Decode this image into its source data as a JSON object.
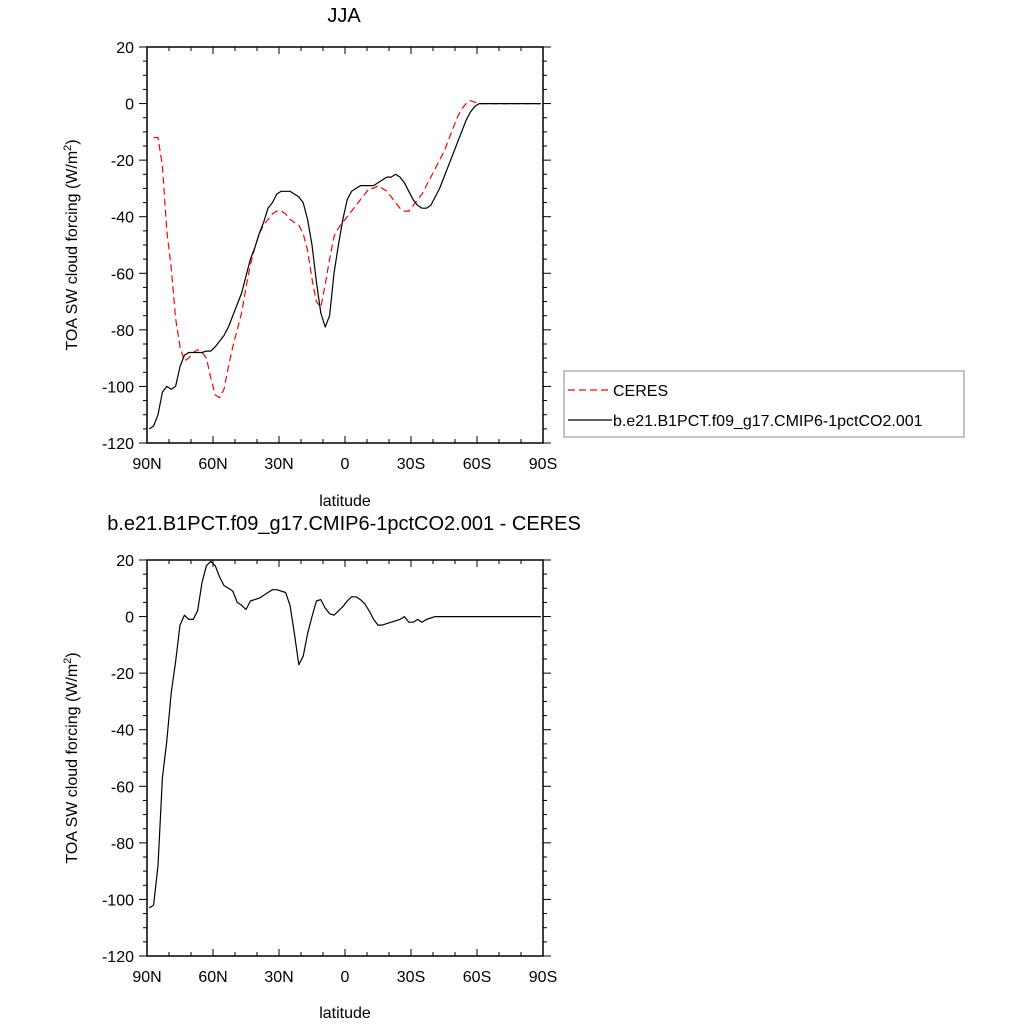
{
  "chart_data": [
    {
      "type": "line",
      "title": "JJA",
      "xlabel": "latitude",
      "ylabel": "TOA SW cloud forcing (W/m²)",
      "ylabel_main": "TOA SW cloud forcing (W/m",
      "ylabel_sup": "2",
      "ylabel_end": ")",
      "xlim": [
        -90,
        90
      ],
      "ylim": [
        -120,
        20
      ],
      "xticks": [
        -90,
        -60,
        -30,
        0,
        30,
        60,
        90
      ],
      "xtick_labels": [
        "90N",
        "60N",
        "30N",
        "0",
        "30S",
        "60S",
        "90S"
      ],
      "yticks": [
        20,
        0,
        -20,
        -40,
        -60,
        -80,
        -100,
        -120
      ],
      "ytick_labels": [
        "20",
        "0",
        "-20",
        "-40",
        "-60",
        "-80",
        "-100",
        "-120"
      ],
      "legend_position": "right, outside plot",
      "series": [
        {
          "name": "CERES",
          "color": "#ff0000",
          "style": "dashed",
          "x": [
            -87,
            -85,
            -83,
            -81,
            -79,
            -77,
            -75,
            -73,
            -71,
            -69,
            -67,
            -65,
            -63,
            -61,
            -59,
            -57,
            -55,
            -53,
            -51,
            -49,
            -47,
            -45,
            -43,
            -41,
            -39,
            -37,
            -35,
            -33,
            -31,
            -29,
            -27,
            -25,
            -23,
            -21,
            -19,
            -17,
            -15,
            -13,
            -11,
            -9,
            -7,
            -5,
            -3,
            -1,
            1,
            3,
            5,
            7,
            9,
            11,
            13,
            15,
            17,
            19,
            21,
            23,
            25,
            27,
            29,
            31,
            33,
            35,
            37,
            39,
            41,
            43,
            45,
            47,
            49,
            51,
            53,
            55,
            57,
            59,
            61,
            63,
            65,
            67,
            69,
            71,
            73,
            75,
            77,
            79,
            81,
            83,
            85,
            87,
            89
          ],
          "y": [
            -12,
            -12,
            -22,
            -45,
            -58,
            -76,
            -86,
            -91,
            -90,
            -88,
            -87,
            -88,
            -90,
            -97,
            -103,
            -104,
            -101,
            -93,
            -86,
            -80,
            -74,
            -65,
            -57,
            -51,
            -46,
            -43,
            -41,
            -39,
            -38,
            -38,
            -39,
            -41,
            -42,
            -43,
            -46,
            -52,
            -62,
            -70,
            -72,
            -64,
            -55,
            -47,
            -44,
            -42,
            -40,
            -38,
            -36,
            -34,
            -32,
            -30,
            -30,
            -29,
            -30,
            -31,
            -33,
            -35,
            -37,
            -38,
            -38,
            -36,
            -34,
            -32,
            -29,
            -26,
            -23,
            -20,
            -17,
            -13,
            -9,
            -5,
            -2,
            0,
            1,
            0.5,
            0,
            0,
            0,
            0,
            0,
            0,
            0,
            0,
            0,
            0,
            0,
            0,
            0,
            0,
            0
          ]
        },
        {
          "name": "b.e21.B1PCT.f09_g17.CMIP6-1pctCO2.001",
          "color": "#000000",
          "style": "solid",
          "x": [
            -89,
            -87,
            -85,
            -83,
            -81,
            -79,
            -77,
            -75,
            -73,
            -71,
            -69,
            -67,
            -65,
            -63,
            -61,
            -59,
            -57,
            -55,
            -53,
            -51,
            -49,
            -47,
            -45,
            -43,
            -41,
            -39,
            -37,
            -35,
            -33,
            -31,
            -29,
            -27,
            -25,
            -23,
            -21,
            -19,
            -17,
            -15,
            -13,
            -11,
            -9,
            -7,
            -5,
            -3,
            -1,
            1,
            3,
            5,
            7,
            9,
            11,
            13,
            15,
            17,
            19,
            21,
            23,
            25,
            27,
            29,
            31,
            33,
            35,
            37,
            39,
            41,
            43,
            45,
            47,
            49,
            51,
            53,
            55,
            57,
            59,
            61,
            63,
            65,
            67,
            69,
            71,
            73,
            75,
            77,
            79,
            81,
            83,
            85,
            87,
            89
          ],
          "y": [
            -115,
            -114,
            -110,
            -102,
            -100,
            -101,
            -100,
            -93,
            -89,
            -88,
            -88,
            -88,
            -88,
            -87.5,
            -87.5,
            -86,
            -84,
            -82,
            -79,
            -75,
            -71,
            -67,
            -61,
            -55,
            -51,
            -46,
            -42,
            -37,
            -35,
            -32,
            -31,
            -31,
            -31,
            -32,
            -33,
            -35,
            -41,
            -50,
            -63,
            -74,
            -79,
            -75,
            -60,
            -50,
            -41,
            -34,
            -31,
            -30,
            -29,
            -29,
            -29,
            -29,
            -28,
            -27,
            -26,
            -26,
            -25,
            -26,
            -28,
            -31,
            -34,
            -36,
            -37,
            -37,
            -36,
            -33,
            -30,
            -26,
            -22,
            -18,
            -14,
            -10,
            -6,
            -3,
            -1,
            0,
            0,
            0,
            0,
            0,
            0,
            0,
            0,
            0,
            0,
            0,
            0,
            0,
            0,
            0
          ]
        }
      ]
    },
    {
      "type": "line",
      "title": "b.e21.B1PCT.f09_g17.CMIP6-1pctCO2.001 - CERES",
      "xlabel": "latitude",
      "ylabel": "TOA SW cloud forcing (W/m²)",
      "ylabel_main": "TOA SW cloud forcing (W/m",
      "ylabel_sup": "2",
      "ylabel_end": ")",
      "xlim": [
        -90,
        90
      ],
      "ylim": [
        -120,
        20
      ],
      "xticks": [
        -90,
        -60,
        -30,
        0,
        30,
        60,
        90
      ],
      "xtick_labels": [
        "90N",
        "60N",
        "30N",
        "0",
        "30S",
        "60S",
        "90S"
      ],
      "yticks": [
        20,
        0,
        -20,
        -40,
        -60,
        -80,
        -100,
        -120
      ],
      "ytick_labels": [
        "20",
        "0",
        "-20",
        "-40",
        "-60",
        "-80",
        "-100",
        "-120"
      ],
      "series": [
        {
          "name": "",
          "color": "#000000",
          "style": "solid",
          "x": [
            -89,
            -87,
            -85,
            -83,
            -81,
            -79,
            -77,
            -75,
            -73,
            -71,
            -69,
            -67,
            -65,
            -63,
            -61,
            -59,
            -57,
            -55,
            -53,
            -51,
            -49,
            -47,
            -45,
            -43,
            -41,
            -39,
            -37,
            -35,
            -33,
            -31,
            -29,
            -27,
            -25,
            -23,
            -21,
            -19,
            -17,
            -15,
            -13,
            -11,
            -9,
            -7,
            -5,
            -3,
            -1,
            1,
            3,
            5,
            7,
            9,
            11,
            13,
            15,
            17,
            19,
            21,
            23,
            25,
            27,
            29,
            31,
            33,
            35,
            37,
            39,
            41,
            43,
            45,
            47,
            49,
            51,
            53,
            55,
            57,
            59,
            61,
            63,
            65,
            67,
            69,
            71,
            73,
            75,
            77,
            79,
            81,
            83,
            85,
            87,
            89
          ],
          "y": [
            -103,
            -102,
            -88,
            -57,
            -44,
            -27,
            -16,
            -3,
            0.5,
            -1,
            -1,
            2,
            12,
            18,
            19.5,
            18,
            14,
            11,
            10,
            9,
            5,
            4,
            2.5,
            5.5,
            6,
            6.5,
            7.5,
            8.5,
            9.5,
            9.5,
            9,
            8.5,
            4,
            -6,
            -17,
            -14,
            -6,
            0,
            5.5,
            6,
            3,
            1,
            0.5,
            2,
            3.5,
            5.5,
            7,
            7,
            6,
            4.5,
            2,
            -1,
            -3,
            -3,
            -2.5,
            -2,
            -1.5,
            -1,
            0,
            -2,
            -2,
            -1,
            -2,
            -1,
            -0.5,
            0,
            0,
            0,
            0,
            0,
            0,
            0,
            0,
            0,
            0,
            0,
            0,
            0,
            0,
            0,
            0,
            0,
            0,
            0,
            0,
            0,
            0,
            0,
            0,
            0
          ]
        }
      ]
    }
  ]
}
